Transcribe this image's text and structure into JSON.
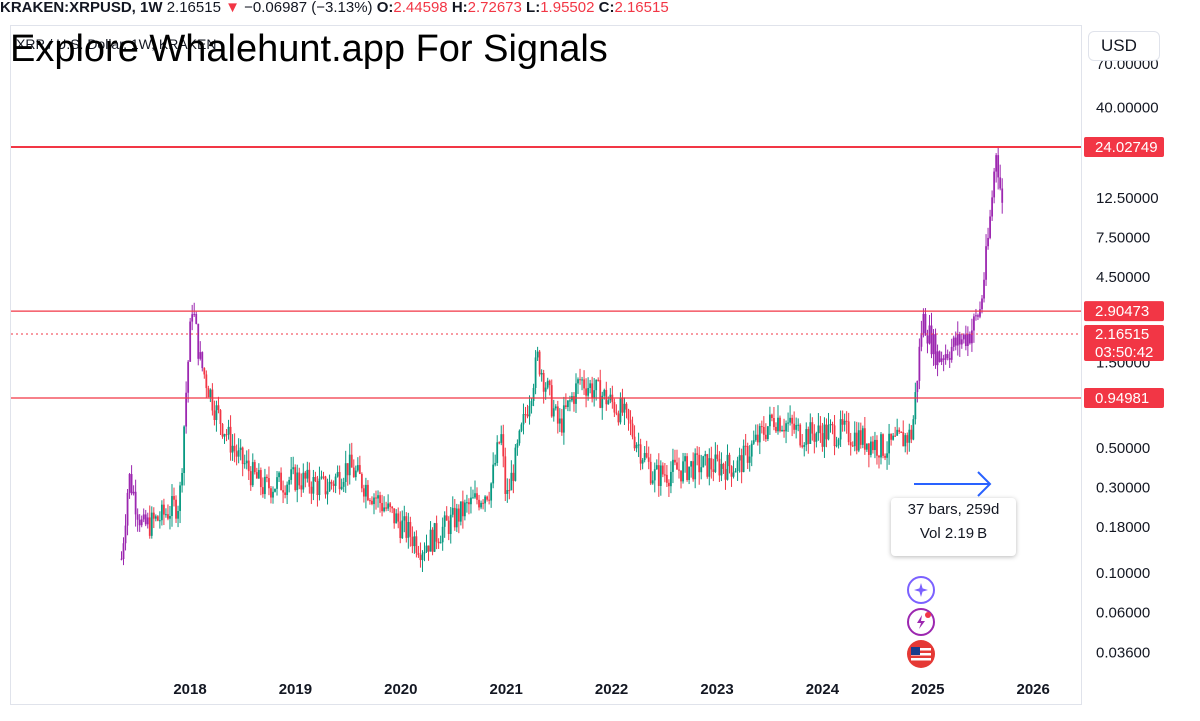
{
  "header": {
    "symbol": "KRAKEN:XRPUSD, 1W",
    "last": "2.16515",
    "change": "−0.06987 (−3.13%)",
    "o_label": "O:",
    "o_value": "2.44598",
    "h_label": "H:",
    "h_value": "2.72673",
    "l_label": "L:",
    "l_value": "1.95502",
    "c_label": "C:",
    "c_value": "2.16515"
  },
  "watermark": "Explore Whalehunt.app For Signals",
  "symbol_description": "XRP / U.S. Dollar, 1W, KRAKEN",
  "currency_button": "USD",
  "measure": {
    "bars": "37 bars, 259d",
    "vol": "Vol 2.19 B"
  },
  "colors": {
    "up": "#089981",
    "down": "#f23645",
    "highlight": "#9c27b0",
    "level": "#f23645",
    "measure": "#2962ff"
  },
  "icons": [
    "sparkle-icon",
    "lightning-alert-icon",
    "us-flag-icon"
  ],
  "chart_data": {
    "type": "candlestick",
    "scale": "log",
    "x_ticks": [
      "2018",
      "2019",
      "2020",
      "2021",
      "2022",
      "2023",
      "2024",
      "2025",
      "2026"
    ],
    "y_ticks": [
      "70.00000",
      "40.00000",
      "12.50000",
      "7.50000",
      "4.50000",
      "1.50000",
      "0.50000",
      "0.30000",
      "0.18000",
      "0.10000",
      "0.06000",
      "0.03600"
    ],
    "horizontal_levels": [
      {
        "value": 24.02749,
        "label": "24.02749"
      },
      {
        "value": 2.90473,
        "label": "2.90473"
      },
      {
        "value": 0.94981,
        "label": "0.94981"
      }
    ],
    "last_price": {
      "value": 2.16515,
      "label": "2.16515",
      "countdown": "03:50:42"
    },
    "series_keypoints": [
      {
        "date": "2017.35",
        "price": 0.12
      },
      {
        "date": "2017.42",
        "price": 0.35
      },
      {
        "date": "2017.55",
        "price": 0.18
      },
      {
        "date": "2017.70",
        "price": 0.2
      },
      {
        "date": "2017.90",
        "price": 0.25
      },
      {
        "date": "2017.97",
        "price": 1.2
      },
      {
        "date": "2018.02",
        "price": 3.2
      },
      {
        "date": "2018.10",
        "price": 1.5
      },
      {
        "date": "2018.25",
        "price": 0.8
      },
      {
        "date": "2018.45",
        "price": 0.45
      },
      {
        "date": "2018.70",
        "price": 0.3
      },
      {
        "date": "2019.00",
        "price": 0.34
      },
      {
        "date": "2019.30",
        "price": 0.3
      },
      {
        "date": "2019.50",
        "price": 0.4
      },
      {
        "date": "2019.80",
        "price": 0.25
      },
      {
        "date": "2020.20",
        "price": 0.14
      },
      {
        "date": "2020.50",
        "price": 0.2
      },
      {
        "date": "2020.85",
        "price": 0.3
      },
      {
        "date": "2020.95",
        "price": 0.6
      },
      {
        "date": "2021.00",
        "price": 0.25
      },
      {
        "date": "2021.30",
        "price": 1.6
      },
      {
        "date": "2021.50",
        "price": 0.65
      },
      {
        "date": "2021.70",
        "price": 1.2
      },
      {
        "date": "2021.90",
        "price": 1.0
      },
      {
        "date": "2022.10",
        "price": 0.8
      },
      {
        "date": "2022.40",
        "price": 0.35
      },
      {
        "date": "2022.80",
        "price": 0.4
      },
      {
        "date": "2023.20",
        "price": 0.4
      },
      {
        "date": "2023.55",
        "price": 0.75
      },
      {
        "date": "2023.80",
        "price": 0.6
      },
      {
        "date": "2024.20",
        "price": 0.62
      },
      {
        "date": "2024.60",
        "price": 0.5
      },
      {
        "date": "2024.85",
        "price": 0.6
      },
      {
        "date": "2024.95",
        "price": 2.7
      },
      {
        "date": "2025.10",
        "price": 1.6
      },
      {
        "date": "2025.40",
        "price": 2.2
      },
      {
        "date": "2025.50",
        "price": 3.0
      },
      {
        "date": "2025.58",
        "price": 8.0
      },
      {
        "date": "2025.65",
        "price": 24.0
      },
      {
        "date": "2025.72",
        "price": 9.0
      }
    ]
  }
}
